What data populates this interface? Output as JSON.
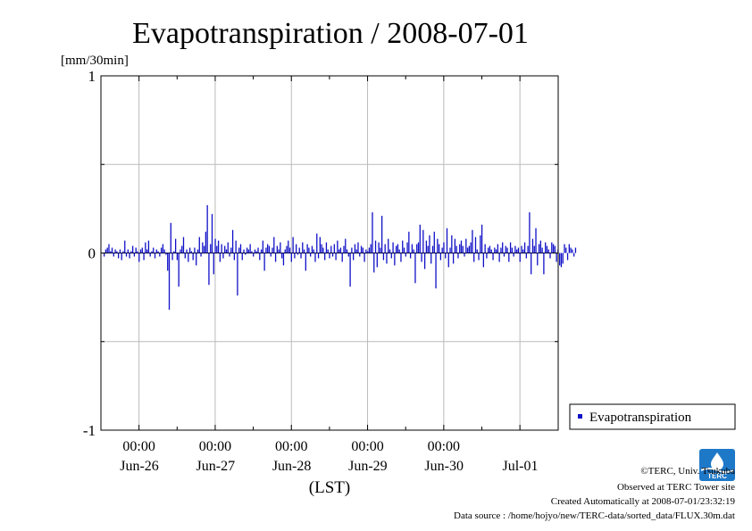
{
  "chart_data": {
    "type": "bar",
    "title": "Evapotranspiration / 2008-07-01",
    "ylabel": "[mm/30min]",
    "xlabel": "(LST)",
    "ylim": [
      -1,
      1
    ],
    "yticks": [
      "-1",
      "0",
      "1"
    ],
    "grid": true,
    "legend_position": "right",
    "x_start": "2008-06-25 12:00",
    "interval_minutes": 30,
    "x_tick_times": [
      "00:00",
      "00:00",
      "00:00",
      "00:00",
      "00:00"
    ],
    "x_day_labels": [
      "Jun-26",
      "Jun-27",
      "Jun-28",
      "Jun-29",
      "Jun-30",
      "Jul-01"
    ],
    "series": [
      {
        "name": "Evapotranspiration",
        "color": "#1010c8",
        "values": [
          -0.02,
          0.02,
          0.03,
          0.05,
          0.01,
          0.03,
          -0.02,
          0.02,
          0.01,
          -0.03,
          0.02,
          -0.04,
          0.01,
          0.07,
          -0.02,
          0.02,
          -0.03,
          0.01,
          0.04,
          -0.02,
          0.03,
          0.01,
          -0.05,
          0.02,
          0.03,
          -0.04,
          0.06,
          0.02,
          0.07,
          -0.02,
          0.01,
          0.03,
          -0.03,
          0.02,
          0.01,
          -0.02,
          0.03,
          0.05,
          0.02,
          -0.01,
          -0.1,
          -0.32,
          0.17,
          -0.04,
          0.01,
          0.08,
          -0.04,
          -0.19,
          0.02,
          0.04,
          0.09,
          -0.03,
          0.02,
          -0.05,
          0.03,
          0.01,
          -0.04,
          0.03,
          -0.07,
          0.02,
          0.09,
          -0.02,
          0.06,
          0.04,
          0.12,
          0.27,
          -0.18,
          0.05,
          0.22,
          -0.12,
          0.08,
          0.04,
          0.07,
          -0.05,
          0.05,
          -0.03,
          0.04,
          0.02,
          0.06,
          -0.02,
          0.03,
          0.13,
          -0.04,
          0.07,
          -0.24,
          0.03,
          0.05,
          -0.04,
          0.02,
          -0.01,
          0.03,
          0.02,
          0.05,
          0.01,
          -0.02,
          0.02,
          0.01,
          0.03,
          -0.04,
          0.02,
          0.07,
          -0.1,
          0.03,
          0.05,
          0.04,
          -0.02,
          0.03,
          0.09,
          -0.05,
          0.04,
          0.02,
          0.06,
          -0.03,
          -0.07,
          0.02,
          0.04,
          0.07,
          0.03,
          -0.05,
          0.09,
          -0.03,
          0.05,
          -0.01,
          0.03,
          -0.03,
          0.06,
          0.02,
          -0.1,
          0.05,
          0.03,
          -0.02,
          0.04,
          0.02,
          -0.05,
          0.11,
          -0.03,
          0.09,
          0.05,
          0.03,
          -0.04,
          0.06,
          0.02,
          -0.03,
          0.04,
          -0.02,
          0.05,
          -0.04,
          0.07,
          0.02,
          0.03,
          -0.05,
          0.04,
          0.08,
          0.02,
          -0.02,
          -0.19,
          0.03,
          -0.04,
          0.05,
          0.02,
          0.06,
          -0.02,
          0.04,
          0.03,
          -0.05,
          0.02,
          0.01,
          0.03,
          0.05,
          0.23,
          -0.11,
          0.07,
          -0.08,
          0.06,
          0.03,
          0.21,
          -0.04,
          0.05,
          -0.06,
          0.08,
          0.02,
          -0.03,
          0.06,
          -0.07,
          0.04,
          0.05,
          0.02,
          -0.05,
          0.07,
          0.03,
          -0.02,
          0.06,
          0.12,
          -0.03,
          0.05,
          0.02,
          -0.17,
          0.05,
          0.06,
          0.16,
          -0.05,
          0.13,
          -0.09,
          0.07,
          0.04,
          0.1,
          -0.06,
          0.04,
          0.12,
          -0.2,
          0.08,
          0.05,
          -0.04,
          0.03,
          0.06,
          -0.03,
          0.14,
          -0.08,
          0.03,
          0.1,
          -0.06,
          0.08,
          0.04,
          -0.03,
          0.05,
          0.07,
          0.04,
          -0.02,
          0.08,
          0.03,
          0.04,
          0.06,
          0.13,
          -0.05,
          0.09,
          0.02,
          -0.04,
          0.1,
          0.16,
          -0.08,
          0.05,
          -0.03,
          0.03,
          0.04,
          0.02,
          -0.04,
          0.03,
          0.02,
          0.05,
          -0.05,
          0.03,
          0.06,
          -0.02,
          0.04,
          0.03,
          -0.05,
          0.06,
          0.03,
          -0.02,
          0.04,
          0.02,
          0.03,
          -0.05,
          0.04,
          0.02,
          0.06,
          -0.03,
          0.04,
          0.23,
          -0.12,
          0.08,
          0.04,
          0.14,
          -0.07,
          0.05,
          0.07,
          0.03,
          -0.12,
          0.06,
          0.04,
          0.02,
          -0.03,
          0.06,
          0.05,
          0.04,
          -0.05,
          0.02,
          -0.07,
          -0.08,
          -0.06,
          0.05,
          0.03,
          -0.04,
          0.05,
          0.03,
          0.02,
          -0.02,
          0.03
        ]
      }
    ]
  },
  "credits": {
    "copyright": "©TERC, Univ. Tsukuba",
    "site": "Observed at TERC Tower site",
    "created": "Created Automatically at 2008-07-01/23:32:19",
    "source": "Data source : /home/hojyo/new/TERC-data/sorted_data/FLUX.30m.dat"
  },
  "logo": {
    "text": "TERC",
    "color": "#1e78c8"
  }
}
